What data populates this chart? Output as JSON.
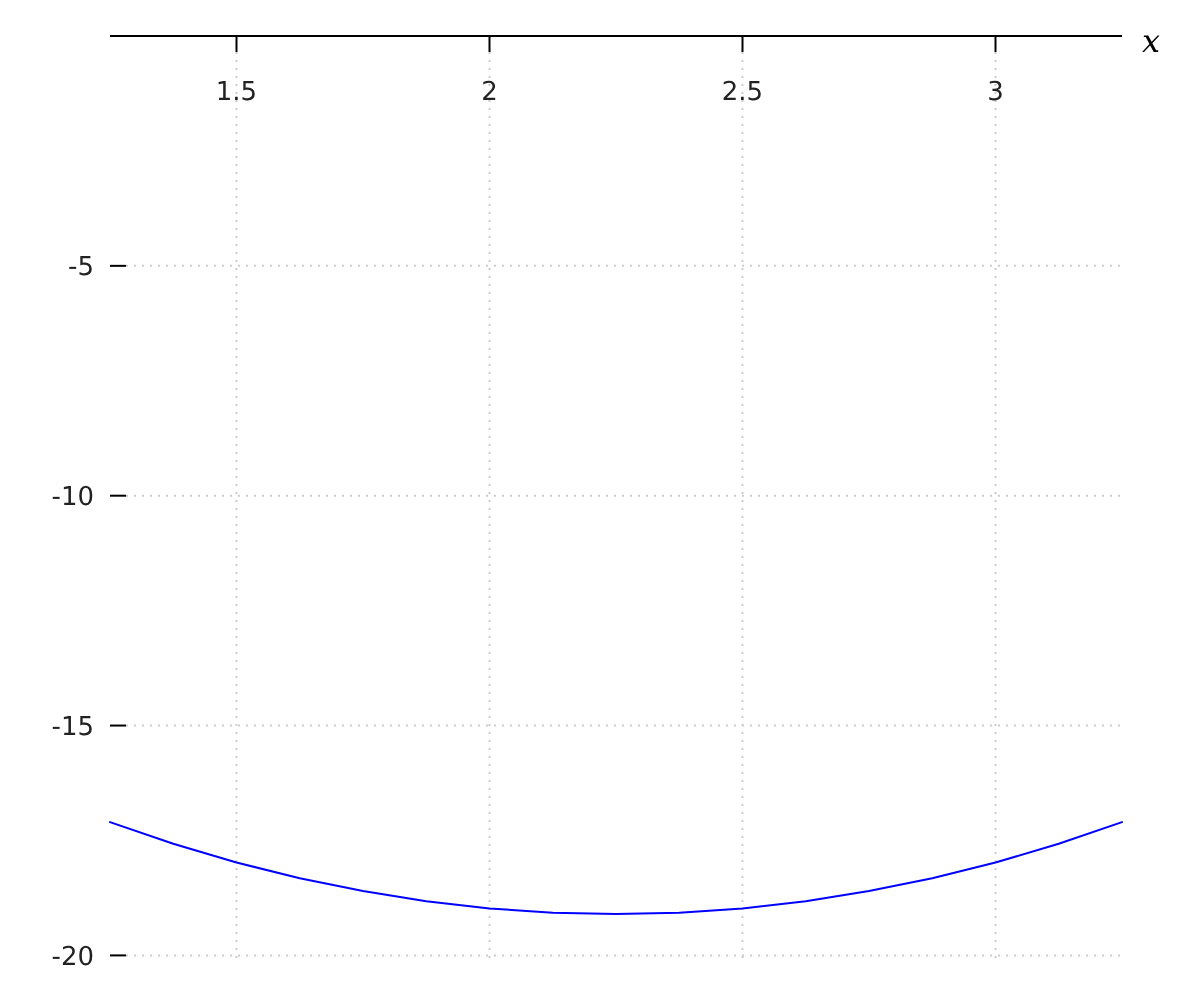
{
  "chart_data": {
    "type": "line",
    "xlabel": "x",
    "x": [
      1.25,
      1.375,
      1.5,
      1.625,
      1.75,
      1.875,
      2.0,
      2.125,
      2.25,
      2.375,
      2.5,
      2.625,
      2.75,
      2.875,
      3.0,
      3.125,
      3.25
    ],
    "series": [
      {
        "color": "#0000ff",
        "values": [
          -17.1,
          -17.57,
          -17.98,
          -18.32,
          -18.6,
          -18.82,
          -18.98,
          -19.07,
          -19.1,
          -19.07,
          -18.98,
          -18.82,
          -18.6,
          -18.32,
          -17.98,
          -17.57,
          -17.1
        ]
      }
    ],
    "xlim": [
      1.25,
      3.25
    ],
    "ylim": [
      -20.1,
      0
    ],
    "xticks": [
      1.5,
      2,
      2.5,
      3
    ],
    "yticks": [
      -5,
      -10,
      -15,
      -20
    ],
    "grid": true
  }
}
